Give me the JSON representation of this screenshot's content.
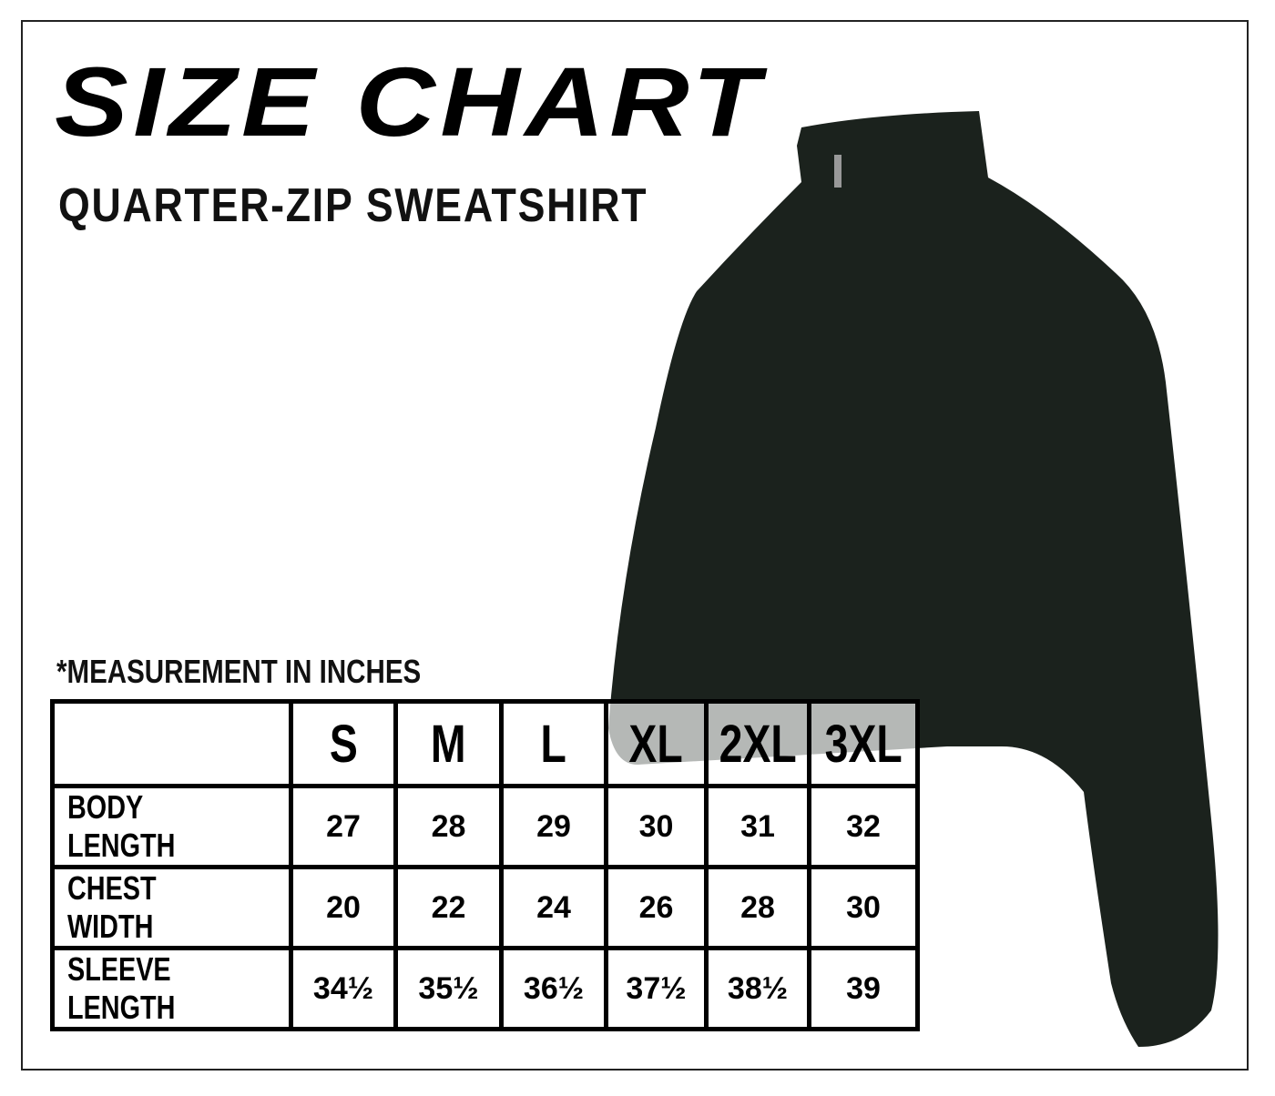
{
  "title": "SIZE CHART",
  "subtitle": "QUARTER-ZIP SWEATSHIRT",
  "note": "*MEASUREMENT IN INCHES",
  "product_color": "#1b221d",
  "table": {
    "sizes": [
      "S",
      "M",
      "L",
      "XL",
      "2XL",
      "3XL"
    ],
    "rows": [
      {
        "label": "BODY LENGTH",
        "values": [
          "27",
          "28",
          "29",
          "30",
          "31",
          "32"
        ]
      },
      {
        "label": "CHEST WIDTH",
        "values": [
          "20",
          "22",
          "24",
          "26",
          "28",
          "30"
        ]
      },
      {
        "label": "SLEEVE LENGTH",
        "values": [
          "34½",
          "35½",
          "36½",
          "37½",
          "38½",
          "39"
        ]
      }
    ]
  }
}
